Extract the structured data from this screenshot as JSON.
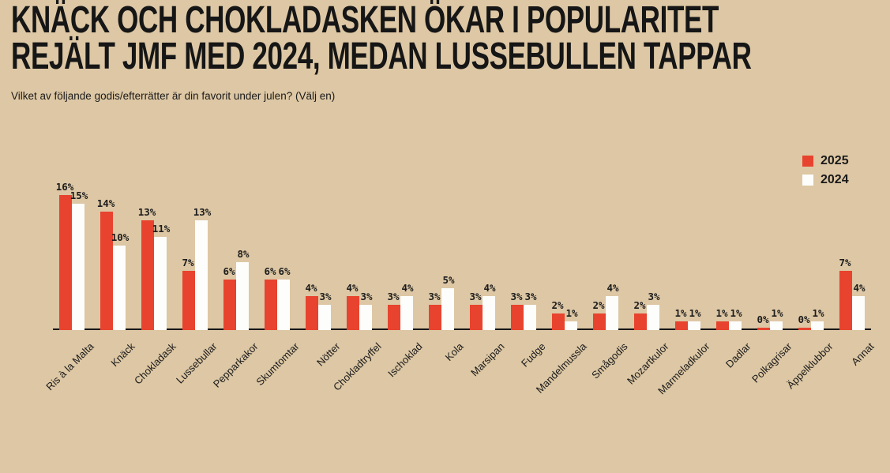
{
  "title": {
    "line1": "KNÄCK OCH CHOKLADASKEN ÖKAR I POPULARITET",
    "line2": "REJÄLT JMF MED 2024, MEDAN LUSSEBULLEN TAPPAR"
  },
  "subtitle": "Vilket av följande godis/efterrätter är din favorit under julen? (Välj en)",
  "legend": [
    {
      "label": "2025",
      "color": "#e8432e"
    },
    {
      "label": "2024",
      "color": "#fdfdfb"
    }
  ],
  "colors": {
    "background": "#ddc7a4",
    "bar_2025": "#e8432e",
    "bar_2024": "#fdfdfb",
    "axis": "#161616",
    "text": "#1a1a1a"
  },
  "chart_data": {
    "type": "bar",
    "title": "KNÄCK OCH CHOKLADASKEN ÖKAR I POPULARITET REJÄLT JMF MED 2024, MEDAN LUSSEBULLEN TAPPAR",
    "subtitle": "Vilket av följande godis/efterrätter är din favorit under julen? (Välj en)",
    "categories": [
      "Ris à la Malta",
      "Knäck",
      "Chokladask",
      "Lussebullar",
      "Pepparkakor",
      "Skumtomtar",
      "Nötter",
      "Chokladtryffel",
      "Ischoklad",
      "Kola",
      "Marsipan",
      "Fudge",
      "Mandelmussla",
      "Smågodis",
      "Mozartkulor",
      "Marmeladkulor",
      "Dadlar",
      "Polkagrisar",
      "Äppelklubbor",
      "Annat"
    ],
    "series": [
      {
        "name": "2025",
        "color": "#e8432e",
        "values": [
          16,
          14,
          13,
          7,
          6,
          6,
          4,
          4,
          3,
          3,
          3,
          3,
          2,
          2,
          2,
          1,
          1,
          0,
          0,
          7
        ]
      },
      {
        "name": "2024",
        "color": "#fdfdfb",
        "values": [
          15,
          10,
          11,
          13,
          8,
          6,
          3,
          3,
          4,
          5,
          4,
          3,
          1,
          4,
          3,
          1,
          1,
          1,
          1,
          4
        ]
      }
    ],
    "value_suffix": "%",
    "value_labels": true,
    "xlabel": "",
    "ylabel": "",
    "ylim": [
      0,
      17
    ],
    "grid": false,
    "legend_position": "top-right"
  }
}
